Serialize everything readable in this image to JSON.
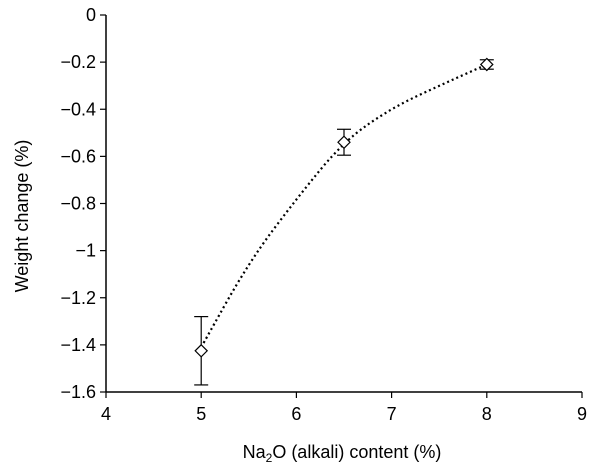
{
  "chart_data": {
    "type": "scatter",
    "title": "",
    "xlabel_parts": [
      "Na",
      "2",
      "O (alkali) content (%)"
    ],
    "ylabel": "Weight change (%)",
    "xlim": [
      4,
      9
    ],
    "ylim": [
      -1.6,
      0
    ],
    "xticks": [
      "4",
      "5",
      "6",
      "7",
      "8",
      "9"
    ],
    "yticks": [
      "0",
      "−0.2",
      "−0.4",
      "−0.6",
      "−0.8",
      "−1",
      "−1.2",
      "−1.4",
      "−1.6"
    ],
    "grid": false,
    "series": [
      {
        "marker": "diamond-open",
        "points": [
          {
            "x": 5.0,
            "y": -1.425,
            "err": 0.145
          },
          {
            "x": 6.5,
            "y": -0.54,
            "err": 0.055
          },
          {
            "x": 8.0,
            "y": -0.21,
            "err": 0.02
          }
        ]
      }
    ],
    "trendline": {
      "style": "dotted",
      "points": [
        {
          "x": 5.0,
          "y": -1.41
        },
        {
          "x": 5.5,
          "y": -1.05
        },
        {
          "x": 6.0,
          "y": -0.78
        },
        {
          "x": 6.5,
          "y": -0.535
        },
        {
          "x": 7.0,
          "y": -0.395
        },
        {
          "x": 7.5,
          "y": -0.3
        },
        {
          "x": 8.0,
          "y": -0.21
        }
      ]
    },
    "colors": {
      "axis": "#000000",
      "marker_fill": "#ffffff",
      "line": "#000000"
    }
  }
}
